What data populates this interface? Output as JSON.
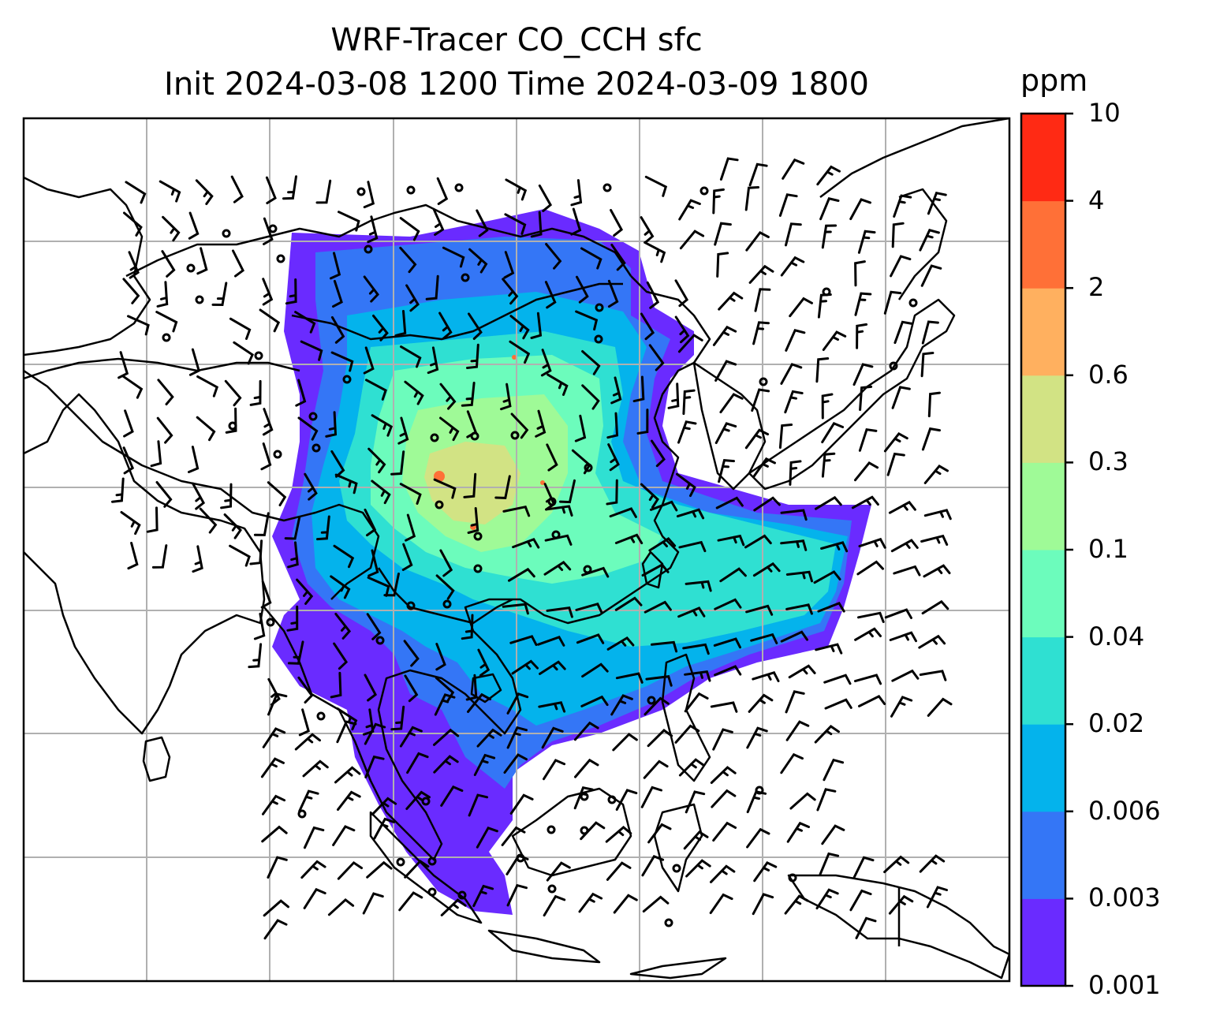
{
  "title": {
    "line1": "WRF-Tracer CO_CCH sfc",
    "line2": "Init 2024-03-08 1200 Time 2024-03-09 1800"
  },
  "colorbar": {
    "units": "ppm",
    "levels": [
      "0.001",
      "0.003",
      "0.006",
      "0.02",
      "0.04",
      "0.1",
      "0.3",
      "0.6",
      "2",
      "4",
      "10"
    ],
    "colors": [
      "#6a2bff",
      "#3476f6",
      "#04b3ec",
      "#2fe0d2",
      "#6cfcbc",
      "#9ffa97",
      "#d2e384",
      "#ffb05f",
      "#ff7037",
      "#ff2a14"
    ]
  },
  "map": {
    "region": "East and Southeast Asia",
    "grid": true,
    "field": "CO_CCH surface tracer concentration",
    "overlay": "wind barbs"
  }
}
